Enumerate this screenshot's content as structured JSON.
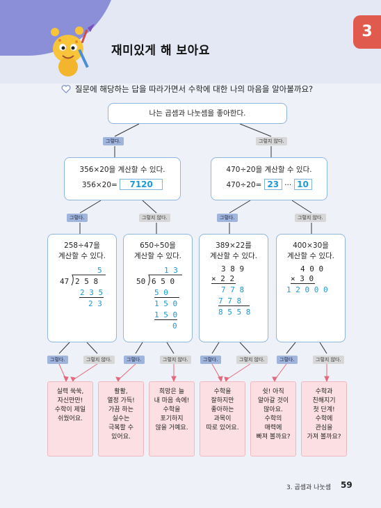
{
  "chapter_tab": "3",
  "title": "재미있게 해 보아요",
  "instruction": "질문에 해당하는 답을 따라가면서 수학에 대한 나의 마음을 알아볼까요?",
  "yes_label": "그렇다.",
  "no_label": "그렇지 않다.",
  "root": "나는 곱셈과 나눗셈을 좋아한다.",
  "left_q": "356×20을 계산할 수 있다.",
  "left_expr": "356×20=",
  "left_ans": "7120",
  "right_q": "470÷20을 계산할 수 있다.",
  "right_expr": "470÷20=",
  "right_ans_q": "23",
  "right_dots": "···",
  "right_ans_r": "10",
  "q1_line1": "258÷47을",
  "q1_line2": "계산할 수 있다.",
  "q2_line1": "650÷50을",
  "q2_line2": "계산할 수 있다.",
  "q3_line1": "389×22를",
  "q3_line2": "계산할 수 있다.",
  "q4_line1": "400×30을",
  "q4_line2": "계산할 수 있다.",
  "calc1": {
    "quotient": "5",
    "divisor": "47",
    "dividend": "2 5 8",
    "sub": "2 3 5",
    "rem": "2 3"
  },
  "calc2": {
    "quotient": "1 3",
    "divisor": "50",
    "dividend": "6 5 0",
    "s1": "5 0",
    "s2": "1 5 0",
    "s3": "1 5 0",
    "rem": "0"
  },
  "calc3": {
    "a": "3 8 9",
    "b": "×  2 2",
    "p1": "7 7 8",
    "p2": "7 7 8",
    "sum": "8 5 5 8"
  },
  "calc4": {
    "a": "4 0 0",
    "b": "×  3 0",
    "res": "1 2 0 0 0"
  },
  "cards": [
    [
      "실력 쑥쑥,",
      "자신만만!",
      "수학이 제일",
      "쉬웠어요."
    ],
    [
      "활활,",
      "열정 가득!",
      "가끔 하는",
      "실수는",
      "극복할 수",
      "있어요."
    ],
    [
      "희망은 늘",
      "내 마음 속에!",
      "수학을",
      "포기하지",
      "않을 거예요."
    ],
    [
      "수학을",
      "잘하지만",
      "좋아하는",
      "과목이",
      "따로 있어요."
    ],
    [
      "쉿! 아직",
      "알아갈 것이",
      "많아요.",
      "수학의",
      "매력에",
      "빠져 볼까요?"
    ],
    [
      "수학과",
      "친해지기",
      "첫 단계!",
      "수학에",
      "관심을",
      "가져 볼까요?"
    ]
  ],
  "footer": "3. 곱셈과 나눗셈",
  "page_number": "59"
}
